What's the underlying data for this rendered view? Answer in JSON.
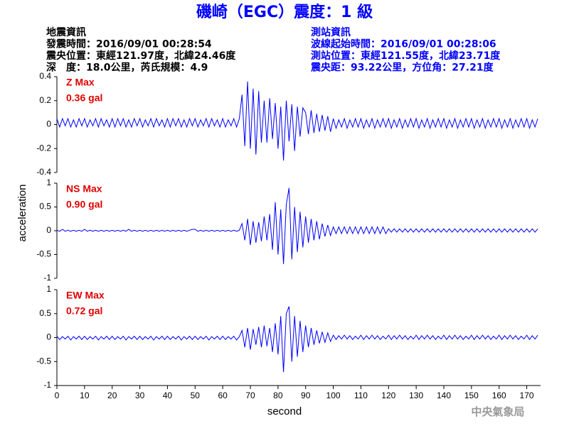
{
  "title": "磯崎（EGC）震度：1 級",
  "info_left": [
    "地震資訊",
    "發震時間：2016/09/01 00:28:54",
    "震央位置：東經121.97度，北緯24.46度",
    "深　度：18.0公里，芮氏規模：4.9"
  ],
  "info_right": [
    "測站資訊",
    "波線起始時間：2016/09/01 00:28:06",
    "測站位置：東經121.55度，北緯23.71度",
    "震央距：93.22公里，方位角：27.21度"
  ],
  "ylabel": "acceleration",
  "xlabel": "second",
  "watermark": "中央氣象局",
  "chart_data": [
    {
      "type": "line",
      "annotations": [
        "Z Max",
        "0.36 gal"
      ],
      "color": "#0000ff",
      "xlim": [
        0,
        175
      ],
      "xticks": [
        0,
        10,
        20,
        30,
        40,
        50,
        60,
        70,
        80,
        90,
        100,
        110,
        120,
        130,
        140,
        150,
        160,
        170
      ],
      "ylim": [
        -0.4,
        0.4
      ],
      "yticks": [
        -0.4,
        -0.2,
        0,
        0.2,
        0.4
      ],
      "x": [
        0,
        1,
        2,
        3,
        4,
        5,
        6,
        7,
        8,
        9,
        10,
        11,
        12,
        13,
        14,
        15,
        16,
        17,
        18,
        19,
        20,
        21,
        22,
        23,
        24,
        25,
        26,
        27,
        28,
        29,
        30,
        31,
        32,
        33,
        34,
        35,
        36,
        37,
        38,
        39,
        40,
        41,
        42,
        43,
        44,
        45,
        46,
        47,
        48,
        49,
        50,
        51,
        52,
        53,
        54,
        55,
        56,
        57,
        58,
        59,
        60,
        61,
        62,
        63,
        64,
        65,
        66,
        67,
        68,
        69,
        70,
        71,
        72,
        73,
        74,
        75,
        76,
        77,
        78,
        79,
        80,
        81,
        82,
        83,
        84,
        85,
        86,
        87,
        88,
        89,
        90,
        91,
        92,
        93,
        94,
        95,
        96,
        97,
        98,
        99,
        100,
        101,
        102,
        103,
        104,
        105,
        106,
        107,
        108,
        109,
        110,
        111,
        112,
        113,
        114,
        115,
        116,
        117,
        118,
        119,
        120,
        121,
        122,
        123,
        124,
        125,
        126,
        127,
        128,
        129,
        130,
        131,
        132,
        133,
        134,
        135,
        136,
        137,
        138,
        139,
        140,
        141,
        142,
        143,
        144,
        145,
        146,
        147,
        148,
        149,
        150,
        151,
        152,
        153,
        154,
        155,
        156,
        157,
        158,
        159,
        160,
        161,
        162,
        163,
        164,
        165,
        166,
        167,
        168,
        169,
        170,
        171,
        172,
        173,
        174
      ],
      "values": [
        0.05,
        -0.02,
        0.05,
        -0.01,
        0.05,
        -0.02,
        0.04,
        -0.02,
        0.05,
        -0.01,
        0.05,
        -0.02,
        0.04,
        -0.01,
        0.05,
        -0.02,
        0.05,
        -0.01,
        0.04,
        -0.02,
        0.05,
        -0.02,
        0.05,
        -0.01,
        0.05,
        -0.02,
        0.04,
        -0.02,
        0.05,
        -0.01,
        0.05,
        -0.02,
        0.04,
        -0.01,
        0.05,
        -0.02,
        0.05,
        -0.01,
        0.04,
        -0.02,
        0.05,
        -0.02,
        0.05,
        -0.01,
        0.05,
        -0.02,
        0.04,
        -0.02,
        0.05,
        -0.01,
        0.05,
        -0.02,
        0.04,
        -0.01,
        0.05,
        -0.02,
        0.05,
        -0.01,
        0.04,
        -0.02,
        0.05,
        -0.02,
        0.04,
        -0.01,
        0.05,
        -0.02,
        0.05,
        0.25,
        -0.18,
        0.36,
        -0.2,
        0.3,
        -0.25,
        0.28,
        -0.15,
        0.2,
        -0.15,
        0.22,
        -0.12,
        0.18,
        -0.2,
        0.15,
        -0.3,
        0.2,
        -0.14,
        0.17,
        -0.22,
        0.15,
        -0.1,
        0.14,
        0.1,
        -0.08,
        0.12,
        -0.07,
        0.09,
        -0.06,
        0.08,
        -0.05,
        0.07,
        -0.06,
        0.05,
        -0.03,
        0.04,
        -0.02,
        0.05,
        -0.03,
        0.04,
        -0.02,
        0.05,
        -0.02,
        0.05,
        -0.03,
        0.04,
        -0.02,
        0.05,
        -0.03,
        0.04,
        -0.02,
        0.05,
        -0.02,
        0.05,
        -0.03,
        0.04,
        -0.02,
        0.05,
        -0.03,
        0.04,
        -0.02,
        0.05,
        -0.02,
        0.05,
        -0.03,
        0.04,
        -0.02,
        0.05,
        -0.03,
        0.04,
        -0.02,
        0.05,
        -0.02,
        0.05,
        -0.03,
        0.04,
        -0.02,
        0.05,
        -0.03,
        0.04,
        -0.02,
        0.05,
        -0.02,
        0.05,
        -0.03,
        0.04,
        -0.02,
        0.05,
        -0.03,
        0.04,
        -0.02,
        0.05,
        -0.02,
        0.05,
        -0.03,
        0.04,
        -0.02,
        0.05,
        -0.03,
        0.04,
        -0.02,
        0.05,
        -0.02,
        0.05,
        -0.03,
        0.04,
        -0.02,
        0.05
      ]
    },
    {
      "type": "line",
      "annotations": [
        "NS Max",
        "0.90 gal"
      ],
      "color": "#0000ff",
      "xlim": [
        0,
        175
      ],
      "xticks": [
        0,
        10,
        20,
        30,
        40,
        50,
        60,
        70,
        80,
        90,
        100,
        110,
        120,
        130,
        140,
        150,
        160,
        170
      ],
      "ylim": [
        -1,
        1
      ],
      "yticks": [
        -1,
        -0.5,
        0,
        0.5,
        1
      ],
      "x": [
        0,
        1,
        2,
        3,
        4,
        5,
        6,
        7,
        8,
        9,
        10,
        11,
        12,
        13,
        14,
        15,
        16,
        17,
        18,
        19,
        20,
        21,
        22,
        23,
        24,
        25,
        26,
        27,
        28,
        29,
        30,
        31,
        32,
        33,
        34,
        35,
        36,
        37,
        38,
        39,
        40,
        41,
        42,
        43,
        44,
        45,
        46,
        47,
        48,
        49,
        50,
        51,
        52,
        53,
        54,
        55,
        56,
        57,
        58,
        59,
        60,
        61,
        62,
        63,
        64,
        65,
        66,
        67,
        68,
        69,
        70,
        71,
        72,
        73,
        74,
        75,
        76,
        77,
        78,
        79,
        80,
        81,
        82,
        83,
        84,
        85,
        86,
        87,
        88,
        89,
        90,
        91,
        92,
        93,
        94,
        95,
        96,
        97,
        98,
        99,
        100,
        101,
        102,
        103,
        104,
        105,
        106,
        107,
        108,
        109,
        110,
        111,
        112,
        113,
        114,
        115,
        116,
        117,
        118,
        119,
        120,
        121,
        122,
        123,
        124,
        125,
        126,
        127,
        128,
        129,
        130,
        131,
        132,
        133,
        134,
        135,
        136,
        137,
        138,
        139,
        140,
        141,
        142,
        143,
        144,
        145,
        146,
        147,
        148,
        149,
        150,
        151,
        152,
        153,
        154,
        155,
        156,
        157,
        158,
        159,
        160,
        161,
        162,
        163,
        164,
        165,
        166,
        167,
        168,
        169,
        170,
        171,
        172,
        173,
        174
      ],
      "values": [
        0.01,
        -0.01,
        0.03,
        -0.01,
        0.01,
        -0.01,
        0.01,
        -0.01,
        0.01,
        -0.01,
        0.03,
        -0.01,
        0.01,
        -0.01,
        0.01,
        -0.01,
        0.01,
        -0.01,
        0.01,
        -0.01,
        0.01,
        -0.01,
        0.01,
        -0.01,
        0.01,
        -0.01,
        0.03,
        -0.01,
        0.01,
        -0.01,
        0.01,
        -0.01,
        0.01,
        -0.01,
        0.01,
        -0.01,
        0.01,
        -0.01,
        0.01,
        -0.01,
        0.01,
        -0.01,
        0.01,
        -0.01,
        0.01,
        -0.01,
        0.01,
        -0.01,
        0.01,
        0.03,
        0.03,
        -0.01,
        0.01,
        -0.01,
        0.01,
        -0.01,
        0.01,
        -0.01,
        0.01,
        -0.01,
        0.01,
        -0.01,
        0.01,
        -0.01,
        0.01,
        -0.01,
        0.01,
        0.15,
        -0.2,
        0.25,
        -0.3,
        0.2,
        -0.25,
        0.18,
        -0.22,
        0.3,
        -0.2,
        0.35,
        -0.4,
        0.6,
        -0.5,
        0.45,
        -0.7,
        0.55,
        0.9,
        -0.6,
        0.5,
        -0.45,
        0.4,
        -0.35,
        0.3,
        -0.25,
        0.25,
        -0.2,
        0.2,
        -0.18,
        0.15,
        -0.12,
        0.12,
        -0.1,
        0.08,
        -0.06,
        0.08,
        -0.06,
        0.08,
        -0.06,
        0.08,
        -0.06,
        0.08,
        -0.06,
        0.08,
        -0.06,
        0.08,
        -0.06,
        0.08,
        -0.06,
        0.08,
        -0.06,
        0.08,
        -0.06,
        0.04,
        -0.03,
        0.04,
        -0.03,
        0.04,
        -0.03,
        0.04,
        -0.03,
        0.04,
        -0.03,
        0.04,
        -0.03,
        0.04,
        -0.03,
        0.04,
        -0.03,
        0.04,
        -0.03,
        0.04,
        -0.03,
        0.04,
        -0.03,
        0.04,
        -0.03,
        0.04,
        -0.03,
        0.04,
        -0.03,
        0.04,
        -0.03,
        0.04,
        -0.03,
        0.04,
        -0.03,
        0.04,
        -0.03,
        0.04,
        -0.03,
        0.04,
        -0.03,
        0.04,
        -0.03,
        0.04,
        -0.03,
        0.04,
        -0.03,
        0.04,
        -0.03,
        0.04,
        -0.03,
        0.04,
        -0.03,
        0.04,
        -0.03,
        0.04
      ]
    },
    {
      "type": "line",
      "annotations": [
        "EW Max",
        "0.72 gal"
      ],
      "color": "#0000ff",
      "xlim": [
        0,
        175
      ],
      "xticks": [
        0,
        10,
        20,
        30,
        40,
        50,
        60,
        70,
        80,
        90,
        100,
        110,
        120,
        130,
        140,
        150,
        160,
        170
      ],
      "ylim": [
        -1,
        1
      ],
      "yticks": [
        -1,
        -0.5,
        0,
        0.5,
        1
      ],
      "x": [
        0,
        1,
        2,
        3,
        4,
        5,
        6,
        7,
        8,
        9,
        10,
        11,
        12,
        13,
        14,
        15,
        16,
        17,
        18,
        19,
        20,
        21,
        22,
        23,
        24,
        25,
        26,
        27,
        28,
        29,
        30,
        31,
        32,
        33,
        34,
        35,
        36,
        37,
        38,
        39,
        40,
        41,
        42,
        43,
        44,
        45,
        46,
        47,
        48,
        49,
        50,
        51,
        52,
        53,
        54,
        55,
        56,
        57,
        58,
        59,
        60,
        61,
        62,
        63,
        64,
        65,
        66,
        67,
        68,
        69,
        70,
        71,
        72,
        73,
        74,
        75,
        76,
        77,
        78,
        79,
        80,
        81,
        82,
        83,
        84,
        85,
        86,
        87,
        88,
        89,
        90,
        91,
        92,
        93,
        94,
        95,
        96,
        97,
        98,
        99,
        100,
        101,
        102,
        103,
        104,
        105,
        106,
        107,
        108,
        109,
        110,
        111,
        112,
        113,
        114,
        115,
        116,
        117,
        118,
        119,
        120,
        121,
        122,
        123,
        124,
        125,
        126,
        127,
        128,
        129,
        130,
        131,
        132,
        133,
        134,
        135,
        136,
        137,
        138,
        139,
        140,
        141,
        142,
        143,
        144,
        145,
        146,
        147,
        148,
        149,
        150,
        151,
        152,
        153,
        154,
        155,
        156,
        157,
        158,
        159,
        160,
        161,
        162,
        163,
        164,
        165,
        166,
        167,
        168,
        169,
        170,
        171,
        172,
        173,
        174
      ],
      "values": [
        0.03,
        -0.04,
        0.02,
        -0.03,
        0.03,
        -0.05,
        0.02,
        -0.03,
        0.03,
        -0.04,
        0.03,
        -0.04,
        0.02,
        -0.03,
        0.03,
        -0.05,
        0.02,
        -0.03,
        0.03,
        -0.04,
        0.03,
        -0.04,
        0.02,
        -0.03,
        0.03,
        -0.05,
        0.02,
        -0.03,
        0.03,
        -0.04,
        0.03,
        -0.04,
        0.02,
        -0.03,
        0.03,
        -0.05,
        0.02,
        -0.03,
        0.03,
        -0.04,
        0.03,
        -0.04,
        0.02,
        -0.03,
        0.03,
        -0.05,
        0.02,
        -0.03,
        0.03,
        -0.04,
        0.03,
        -0.04,
        0.02,
        -0.03,
        0.03,
        -0.05,
        0.02,
        -0.03,
        0.03,
        -0.04,
        0.03,
        -0.04,
        0.02,
        -0.03,
        0.03,
        -0.05,
        0.02,
        0.15,
        -0.2,
        0.2,
        -0.25,
        0.18,
        -0.15,
        0.22,
        -0.2,
        0.25,
        -0.18,
        0.2,
        -0.3,
        0.3,
        -0.35,
        0.45,
        -0.72,
        0.5,
        0.65,
        -0.5,
        0.45,
        -0.4,
        0.35,
        -0.3,
        0.25,
        -0.2,
        0.2,
        -0.15,
        0.15,
        -0.12,
        0.12,
        -0.1,
        0.1,
        -0.08,
        0.05,
        -0.04,
        0.04,
        -0.03,
        0.05,
        -0.03,
        0.04,
        -0.04,
        0.03,
        -0.03,
        0.05,
        -0.04,
        0.04,
        -0.03,
        0.05,
        -0.03,
        0.04,
        -0.04,
        0.03,
        -0.03,
        0.05,
        -0.04,
        0.04,
        -0.03,
        0.05,
        -0.03,
        0.04,
        -0.04,
        0.03,
        -0.03,
        0.05,
        -0.04,
        0.04,
        -0.03,
        0.05,
        -0.03,
        0.04,
        -0.04,
        0.03,
        -0.03,
        0.05,
        -0.04,
        0.04,
        -0.03,
        0.05,
        -0.03,
        0.04,
        -0.04,
        0.03,
        -0.03,
        0.05,
        -0.04,
        0.04,
        -0.03,
        0.05,
        -0.03,
        0.04,
        -0.04,
        0.03,
        -0.03,
        0.05,
        -0.04,
        0.04,
        -0.03,
        0.05,
        -0.03,
        0.04,
        -0.04,
        0.03,
        -0.03,
        0.05,
        -0.04,
        0.04,
        -0.03,
        0.05
      ]
    }
  ]
}
